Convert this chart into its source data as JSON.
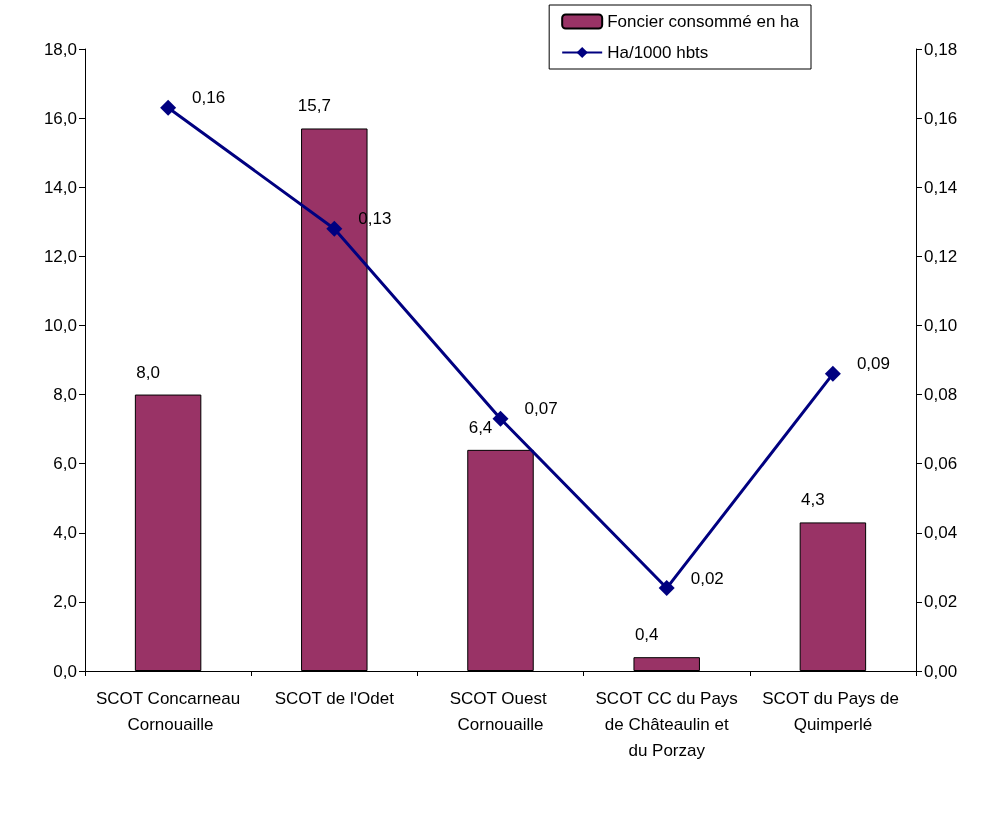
{
  "chart_data": {
    "type": "bar",
    "categories": [
      "SCOT Concarneau Cornouaille",
      "SCOT de l'Odet",
      "SCOT Ouest Cornouaille",
      "SCOT CC du Pays de Châteaulin et du Porzay",
      "SCOT du Pays de Quimperlé"
    ],
    "series": [
      {
        "name": "Foncier consommé en ha",
        "color": "#993366",
        "values": [
          8.0,
          15.7,
          6.4,
          0.4,
          4.3
        ],
        "value_labels": [
          "8,0",
          "15,7",
          "6,4",
          "0,4",
          "4,3"
        ]
      },
      {
        "name": "Ha/1000 hbts",
        "type": "line",
        "axis": "y2",
        "color": "#000080",
        "marker": "diamond",
        "values": [
          0.163,
          0.128,
          0.073,
          0.024,
          0.086
        ],
        "value_labels": [
          "0,16",
          "0,13",
          "0,07",
          "0,02",
          "0,09"
        ]
      }
    ],
    "ylim": [
      0,
      18
    ],
    "yticks": [
      {
        "value": 0,
        "label": "0,0"
      },
      {
        "value": 2,
        "label": "2,0"
      },
      {
        "value": 4,
        "label": "4,0"
      },
      {
        "value": 6,
        "label": "6,0"
      },
      {
        "value": 8,
        "label": "8,0"
      },
      {
        "value": 10,
        "label": "10,0"
      },
      {
        "value": 12,
        "label": "12,0"
      },
      {
        "value": 14,
        "label": "14,0"
      },
      {
        "value": 16,
        "label": "16,0"
      },
      {
        "value": 18,
        "label": "18,0"
      }
    ],
    "y2lim": [
      0,
      0.18
    ],
    "y2ticks": [
      {
        "value": 0,
        "label": "0,00"
      },
      {
        "value": 0.02,
        "label": "0,02"
      },
      {
        "value": 0.04,
        "label": "0,04"
      },
      {
        "value": 0.06,
        "label": "0,06"
      },
      {
        "value": 0.08,
        "label": "0,08"
      },
      {
        "value": 0.1,
        "label": "0,10"
      },
      {
        "value": 0.12,
        "label": "0,12"
      },
      {
        "value": 0.14,
        "label": "0,14"
      },
      {
        "value": 0.16,
        "label": "0,16"
      },
      {
        "value": 0.18,
        "label": "0,18"
      }
    ],
    "grid": false,
    "legend": "top right"
  }
}
